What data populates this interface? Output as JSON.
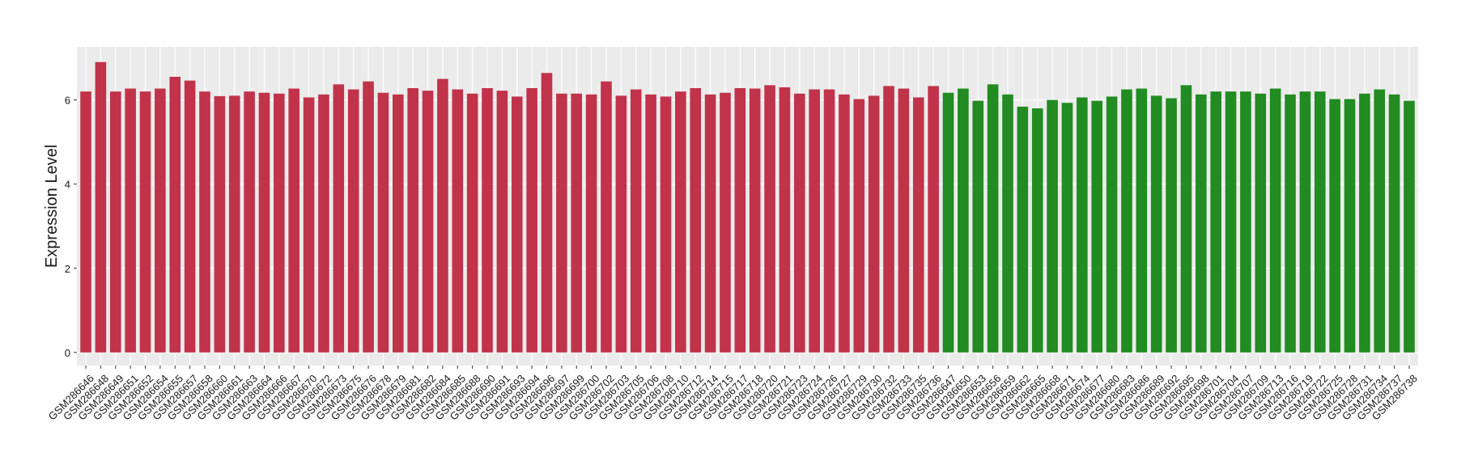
{
  "chart_data": {
    "type": "bar",
    "y_label": "Expression Level",
    "categories": [
      "GSM286646",
      "GSM286648",
      "GSM286649",
      "GSM286651",
      "GSM286652",
      "GSM286654",
      "GSM286655",
      "GSM286657",
      "GSM286658",
      "GSM286660",
      "GSM286661",
      "GSM286663",
      "GSM286664",
      "GSM286666",
      "GSM286667",
      "GSM286670",
      "GSM286672",
      "GSM286673",
      "GSM286675",
      "GSM286676",
      "GSM286678",
      "GSM286679",
      "GSM286681",
      "GSM286682",
      "GSM286684",
      "GSM286685",
      "GSM286688",
      "GSM286690",
      "GSM286691",
      "GSM286693",
      "GSM286694",
      "GSM286696",
      "GSM286697",
      "GSM286699",
      "GSM286700",
      "GSM286702",
      "GSM286703",
      "GSM286705",
      "GSM286706",
      "GSM286708",
      "GSM286710",
      "GSM286712",
      "GSM286714",
      "GSM286715",
      "GSM286717",
      "GSM286718",
      "GSM286720",
      "GSM286721",
      "GSM286723",
      "GSM286724",
      "GSM286726",
      "GSM286727",
      "GSM286729",
      "GSM286730",
      "GSM286732",
      "GSM286733",
      "GSM286735",
      "GSM286736",
      "GSM286647",
      "GSM286650",
      "GSM286653",
      "GSM286656",
      "GSM286659",
      "GSM286662",
      "GSM286665",
      "GSM286668",
      "GSM286671",
      "GSM286674",
      "GSM286677",
      "GSM286680",
      "GSM286683",
      "GSM286686",
      "GSM286689",
      "GSM286692",
      "GSM286695",
      "GSM286698",
      "GSM286701",
      "GSM286704",
      "GSM286707",
      "GSM286709",
      "GSM286713",
      "GSM286716",
      "GSM286719",
      "GSM286722",
      "GSM286725",
      "GSM286728",
      "GSM286731",
      "GSM286734",
      "GSM286737",
      "GSM286738"
    ],
    "values": [
      6.2,
      6.9,
      6.2,
      6.27,
      6.2,
      6.27,
      6.55,
      6.46,
      6.2,
      6.09,
      6.1,
      6.2,
      6.17,
      6.15,
      6.27,
      6.06,
      6.13,
      6.37,
      6.25,
      6.44,
      6.17,
      6.13,
      6.28,
      6.22,
      6.5,
      6.25,
      6.15,
      6.28,
      6.22,
      6.08,
      6.28,
      6.64,
      6.15,
      6.15,
      6.13,
      6.44,
      6.1,
      6.25,
      6.13,
      6.08,
      6.2,
      6.28,
      6.13,
      6.17,
      6.28,
      6.27,
      6.35,
      6.3,
      6.15,
      6.25,
      6.25,
      6.13,
      6.02,
      6.1,
      6.33,
      6.27,
      6.06,
      6.33,
      6.17,
      6.27,
      5.98,
      6.37,
      6.13,
      5.84,
      5.8,
      6.0,
      5.93,
      6.06,
      5.98,
      6.08,
      6.25,
      6.27,
      6.1,
      6.04,
      6.35,
      6.13,
      6.2,
      6.2,
      6.2,
      6.15,
      6.27,
      6.13,
      6.2,
      6.2,
      6.02,
      6.02,
      6.15,
      6.25,
      6.13,
      5.98
    ],
    "colors": [
      "#c1334a",
      "#c1334a",
      "#c1334a",
      "#c1334a",
      "#c1334a",
      "#c1334a",
      "#c1334a",
      "#c1334a",
      "#c1334a",
      "#c1334a",
      "#c1334a",
      "#c1334a",
      "#c1334a",
      "#c1334a",
      "#c1334a",
      "#c1334a",
      "#c1334a",
      "#c1334a",
      "#c1334a",
      "#c1334a",
      "#c1334a",
      "#c1334a",
      "#c1334a",
      "#c1334a",
      "#c1334a",
      "#c1334a",
      "#c1334a",
      "#c1334a",
      "#c1334a",
      "#c1334a",
      "#c1334a",
      "#c1334a",
      "#c1334a",
      "#c1334a",
      "#c1334a",
      "#c1334a",
      "#c1334a",
      "#c1334a",
      "#c1334a",
      "#c1334a",
      "#c1334a",
      "#c1334a",
      "#c1334a",
      "#c1334a",
      "#c1334a",
      "#c1334a",
      "#c1334a",
      "#c1334a",
      "#c1334a",
      "#c1334a",
      "#c1334a",
      "#c1334a",
      "#c1334a",
      "#c1334a",
      "#c1334a",
      "#c1334a",
      "#c1334a",
      "#c1334a",
      "#228b22",
      "#228b22",
      "#228b22",
      "#228b22",
      "#228b22",
      "#228b22",
      "#228b22",
      "#228b22",
      "#228b22",
      "#228b22",
      "#228b22",
      "#228b22",
      "#228b22",
      "#228b22",
      "#228b22",
      "#228b22",
      "#228b22",
      "#228b22",
      "#228b22",
      "#228b22",
      "#228b22",
      "#228b22",
      "#228b22",
      "#228b22",
      "#228b22",
      "#228b22",
      "#228b22",
      "#228b22",
      "#228b22",
      "#228b22",
      "#228b22",
      "#228b22"
    ],
    "ylim": [
      -0.31,
      7.26
    ],
    "yticks": [
      0,
      2,
      4,
      6
    ],
    "grid": true
  }
}
